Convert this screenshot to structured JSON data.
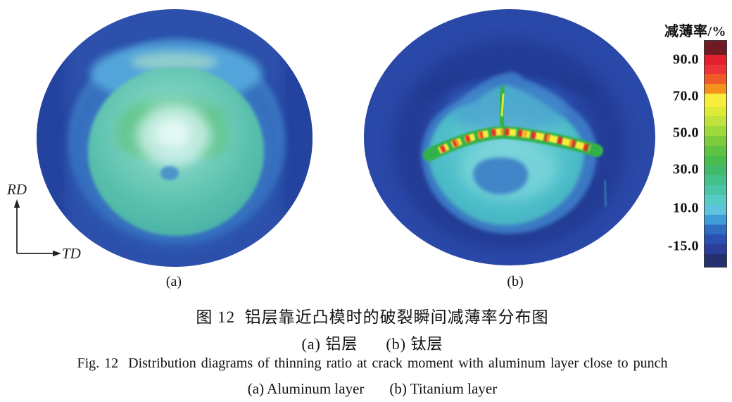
{
  "figure": {
    "axes": {
      "vertical": "RD",
      "horizontal": "TD"
    },
    "subplots": [
      {
        "id": "a",
        "label": "(a)",
        "layer_zh": "铝层",
        "layer_en": "Aluminum layer"
      },
      {
        "id": "b",
        "label": "(b)",
        "layer_zh": "钛层",
        "layer_en": "Titanium layer"
      }
    ],
    "captions": {
      "zh_main": "图 12  铝层靠近凸模时的破裂瞬间减薄率分布图",
      "zh_sub_a": "(a) 铝层",
      "zh_sub_b": "(b) 钛层",
      "en_main": "Fig. 12  Distribution diagrams of thinning ratio at crack moment with aluminum layer close to punch",
      "en_sub_a": "(a) Aluminum layer",
      "en_sub_b": "(b) Titanium layer"
    }
  },
  "colorbar": {
    "title": "减薄率/%",
    "ticks": [
      {
        "label": "90.0",
        "pos_pct": 8.7
      },
      {
        "label": "70.0",
        "pos_pct": 24.8
      },
      {
        "label": "50.0",
        "pos_pct": 41.0
      },
      {
        "label": "30.0",
        "pos_pct": 57.1
      },
      {
        "label": "10.0",
        "pos_pct": 73.9
      },
      {
        "label": "-15.0",
        "pos_pct": 90.7
      }
    ],
    "segments": [
      {
        "color": "#701b24",
        "weight": 1.4
      },
      {
        "color": "#e41f2e",
        "weight": 1
      },
      {
        "color": "#ed3337",
        "weight": 1
      },
      {
        "color": "#f05a28",
        "weight": 1
      },
      {
        "color": "#f5911e",
        "weight": 1
      },
      {
        "color": "#f8ed3d",
        "weight": 1.3
      },
      {
        "color": "#dcea39",
        "weight": 1
      },
      {
        "color": "#bfe23c",
        "weight": 1
      },
      {
        "color": "#9cd93a",
        "weight": 1
      },
      {
        "color": "#7ccb3d",
        "weight": 1
      },
      {
        "color": "#5dc341",
        "weight": 1
      },
      {
        "color": "#49bc4d",
        "weight": 1
      },
      {
        "color": "#41bb6b",
        "weight": 1
      },
      {
        "color": "#44c08b",
        "weight": 1
      },
      {
        "color": "#4bc5a7",
        "weight": 1
      },
      {
        "color": "#57cbc4",
        "weight": 1
      },
      {
        "color": "#5ec3df",
        "weight": 1
      },
      {
        "color": "#3f9cd8",
        "weight": 1
      },
      {
        "color": "#2f6cc2",
        "weight": 1
      },
      {
        "color": "#2c4fb2",
        "weight": 1
      },
      {
        "color": "#2b3f98",
        "weight": 1
      },
      {
        "color": "#27306f",
        "weight": 1.3
      }
    ]
  },
  "chart_data": [
    {
      "type": "heatmap",
      "subplot": "(a)",
      "layer_zh": "铝层",
      "layer_en": "Aluminum layer",
      "variable": "减薄率/% (thinning ratio, %)",
      "colorbar_ticks": [
        90.0,
        70.0,
        50.0,
        30.0,
        10.0,
        -15.0
      ],
      "legend_position": "right",
      "regions": [
        {
          "region": "outer flange ring (royal blue)",
          "approx_value_pct": -10
        },
        {
          "region": "flange side chords (darker blue)",
          "approx_value_pct": -15
        },
        {
          "region": "die-shoulder bright arc at top (light blue-cyan)",
          "approx_value_pct": 8
        },
        {
          "region": "cup wall ring (steel blue)",
          "approx_value_pct": 5
        },
        {
          "region": "punch dome (teal)",
          "approx_value_pct": 18
        },
        {
          "region": "green patches around dome top",
          "approx_value_pct": 30
        },
        {
          "region": "dome center highlight (pale cyan)",
          "approx_value_pct": 12
        },
        {
          "region": "small blue spot below center",
          "approx_value_pct": 5
        }
      ]
    },
    {
      "type": "heatmap",
      "subplot": "(b)",
      "layer_zh": "钛层",
      "layer_en": "Titanium layer",
      "variable": "减薄率/% (thinning ratio, %)",
      "colorbar_ticks": [
        90.0,
        70.0,
        50.0,
        30.0,
        10.0,
        -15.0
      ],
      "legend_position": "right",
      "regions": [
        {
          "region": "outer flange (royal blue)",
          "approx_value_pct": -12
        },
        {
          "region": "dark ring shadow around dome",
          "approx_value_pct": -15
        },
        {
          "region": "dome blob (teal/cyan)",
          "approx_value_pct": 18
        },
        {
          "region": "crack band (green, V-shaped across dome)",
          "approx_value_pct": 40
        },
        {
          "region": "crack stripes yellow",
          "approx_value_pct": 65
        },
        {
          "region": "crack stripes orange/red (max local thinning)",
          "approx_value_pct": 85
        },
        {
          "region": "vertical green streak above crack",
          "approx_value_pct": 40
        },
        {
          "region": "blue patch below dome center",
          "approx_value_pct": 8
        }
      ]
    }
  ]
}
